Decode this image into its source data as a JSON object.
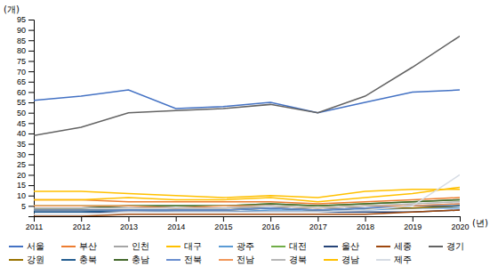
{
  "chart_data": {
    "type": "line",
    "x_label": "(년)",
    "y_label": "(개)",
    "x": [
      2011,
      2012,
      2013,
      2014,
      2015,
      2016,
      2017,
      2018,
      2019,
      2020
    ],
    "xlim": [
      2011,
      2020
    ],
    "xticks": [
      2011,
      2012,
      2013,
      2014,
      2015,
      2016,
      2017,
      2018,
      2019,
      2020
    ],
    "ylim": [
      0,
      95
    ],
    "yticks": [
      5,
      10,
      15,
      20,
      25,
      30,
      35,
      40,
      45,
      50,
      55,
      60,
      65,
      70,
      75,
      80,
      85,
      90,
      95
    ],
    "grid": false,
    "legend": "bottom",
    "series": [
      {
        "name": "서울",
        "color": "#4472C4",
        "values": [
          56,
          58,
          61,
          52,
          53,
          55,
          50,
          55,
          60,
          61
        ]
      },
      {
        "name": "부산",
        "color": "#ED7D31",
        "values": [
          8,
          8,
          7,
          7,
          7,
          7,
          6,
          7,
          8,
          9
        ]
      },
      {
        "name": "인천",
        "color": "#A5A5A5",
        "values": [
          4,
          4,
          5,
          4,
          4,
          4,
          3,
          4,
          4,
          5
        ]
      },
      {
        "name": "대구",
        "color": "#FFC000",
        "values": [
          12,
          12,
          11,
          10,
          9,
          10,
          9,
          12,
          13,
          13
        ]
      },
      {
        "name": "광주",
        "color": "#5B9BD5",
        "values": [
          3,
          3,
          3,
          2,
          2,
          3,
          3,
          3,
          4,
          4
        ]
      },
      {
        "name": "대전",
        "color": "#70AD47",
        "values": [
          5,
          5,
          5,
          5,
          5,
          6,
          5,
          6,
          7,
          8
        ]
      },
      {
        "name": "울산",
        "color": "#264478",
        "values": [
          2,
          2,
          2,
          2,
          2,
          2,
          2,
          2,
          2,
          3
        ]
      },
      {
        "name": "세종",
        "color": "#9E480E",
        "values": [
          0,
          0,
          1,
          1,
          1,
          1,
          1,
          1,
          2,
          3
        ]
      },
      {
        "name": "경기",
        "color": "#636363",
        "values": [
          39,
          43,
          50,
          51,
          52,
          54,
          50,
          58,
          72,
          87
        ]
      },
      {
        "name": "강원",
        "color": "#997300",
        "values": [
          3,
          3,
          3,
          3,
          3,
          4,
          3,
          4,
          4,
          5
        ]
      },
      {
        "name": "충북",
        "color": "#255E91",
        "values": [
          2,
          2,
          3,
          3,
          3,
          4,
          3,
          4,
          5,
          5
        ]
      },
      {
        "name": "충남",
        "color": "#43682B",
        "values": [
          4,
          4,
          5,
          5,
          5,
          6,
          5,
          6,
          7,
          8
        ]
      },
      {
        "name": "전북",
        "color": "#698ED0",
        "values": [
          3,
          3,
          3,
          3,
          3,
          4,
          3,
          4,
          5,
          6
        ]
      },
      {
        "name": "전남",
        "color": "#F1975A",
        "values": [
          5,
          5,
          5,
          4,
          5,
          5,
          4,
          5,
          5,
          6
        ]
      },
      {
        "name": "경북",
        "color": "#B7B7B7",
        "values": [
          4,
          4,
          4,
          4,
          4,
          5,
          4,
          5,
          6,
          7
        ]
      },
      {
        "name": "경남",
        "color": "#FFC000",
        "values": [
          8,
          8,
          9,
          8,
          8,
          9,
          7,
          9,
          11,
          14
        ]
      },
      {
        "name": "제주",
        "color": "#D6DCE4",
        "values": [
          1,
          1,
          2,
          2,
          2,
          2,
          2,
          3,
          5,
          20
        ]
      }
    ]
  }
}
